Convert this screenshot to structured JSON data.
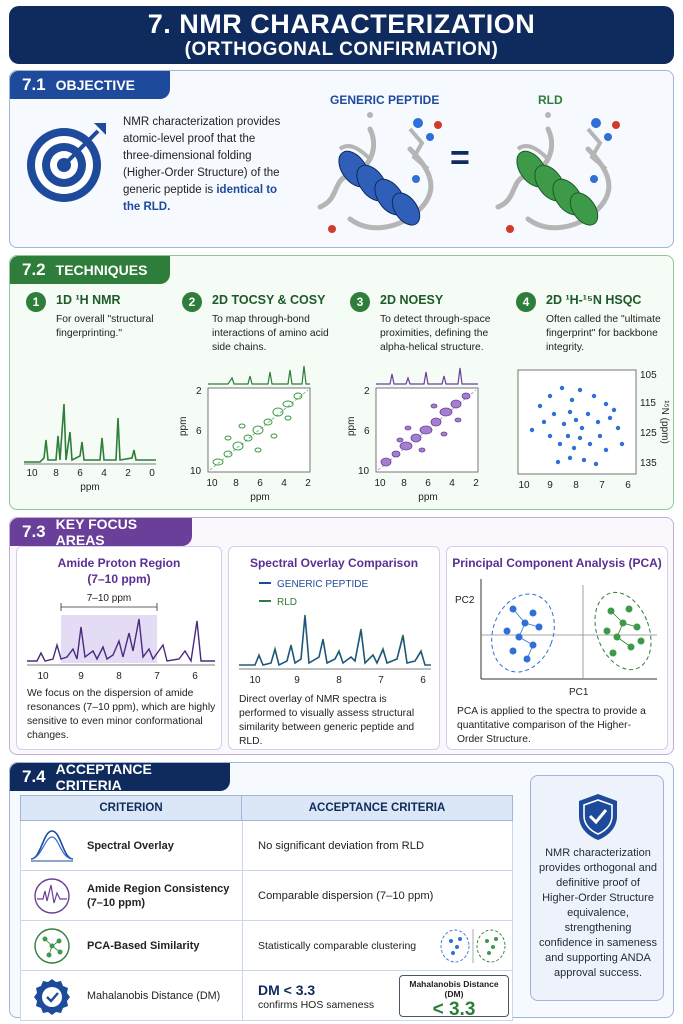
{
  "header": {
    "title": "7. NMR CHARACTERIZATION",
    "subtitle": "(ORTHOGONAL CONFIRMATION)"
  },
  "objective": {
    "number": "7.1",
    "heading": "OBJECTIVE",
    "text": "NMR characterization provides atomic-level proof that the three-dimensional folding (Higher-Order Structure) of the generic peptide is",
    "highlight": "identical to the RLD.",
    "label_left": "GENERIC PEPTIDE",
    "label_right": "RLD",
    "equals": "="
  },
  "techniques": {
    "number": "7.2",
    "heading": "TECHNIQUES",
    "items": [
      {
        "num": "1",
        "title": "1D ¹H NMR",
        "desc": "For overall \"structural fingerprinting.\""
      },
      {
        "num": "2",
        "title": "2D TOCSY & COSY",
        "desc": "To map through-bond interactions of amino acid side chains."
      },
      {
        "num": "3",
        "title": "2D NOESY",
        "desc": "To detect through-space proximities, defining the alpha-helical structure."
      },
      {
        "num": "4",
        "title": "2D ¹H-¹⁵N HSQC",
        "desc": "Often called the \"ultimate fingerprint\" for backbone integrity."
      }
    ],
    "plot1_ticks": [
      "10",
      "8",
      "6",
      "4",
      "2",
      "0"
    ],
    "ppm": "ppm",
    "plot2_xticks": [
      "10",
      "8",
      "6",
      "4",
      "2"
    ],
    "plot2_yticks": [
      "2",
      "6",
      "10"
    ],
    "plot4_xticks": [
      "10",
      "9",
      "8",
      "7",
      "6"
    ],
    "plot4_yticks": [
      "105",
      "115",
      "125",
      "135"
    ],
    "plot4_ylabel": "¹⁵N (ppm)"
  },
  "focus": {
    "number": "7.3",
    "heading": "KEY FOCUS AREAS",
    "cards": [
      {
        "title": "Amide Proton Region",
        "subtitle": "(7–10 ppm)",
        "range_label": "7–10 ppm",
        "desc": "We focus on the dispersion of amide resonances (7–10 ppm), which are highly sensitive to even minor conformational changes."
      },
      {
        "title": "Spectral Overlay Comparison",
        "desc": "Direct overlay of NMR spectra is performed to visually assess structural similarity between generic peptide and RLD."
      },
      {
        "title": "Principal Component Analysis (PCA)",
        "desc": "PCA is applied to the spectra to provide a quantitative comparison of the Higher-Order Structure."
      }
    ],
    "amide_ticks": [
      "10",
      "9",
      "8",
      "7",
      "6"
    ],
    "overlay_legend": [
      "GENERIC PEPTIDE",
      "RLD"
    ],
    "overlay_ticks": [
      "10",
      "9",
      "8",
      "7",
      "6"
    ],
    "pca_x": "PC1",
    "pca_y": "PC2"
  },
  "acceptance": {
    "number": "7.4",
    "heading": "ACCEPTANCE CRITERIA",
    "col1": "CRITERION",
    "col2": "ACCEPTANCE CRITERIA",
    "rows": [
      {
        "criterion": "Spectral Overlay",
        "acceptance": "No significant deviation from RLD"
      },
      {
        "criterion": "Amide Region Consistency (7–10 ppm)",
        "acceptance": "Comparable dispersion (7–10 ppm)"
      },
      {
        "criterion": "PCA-Based Similarity",
        "acceptance": "Statistically comparable clustering"
      },
      {
        "criterion": "Mahalanobis Distance (DM)",
        "acceptance_big": "DM < 3.3",
        "acceptance_small": "confirms HOS sameness"
      }
    ],
    "dm_box_label": "Mahalanobis Distance (DM)",
    "dm_box_value": "< 3.3",
    "side_text": "NMR characterization provides orthogonal and definitive proof of Higher-Order Structure equivalence, strengthening confidence in sameness and supporting ANDA approval success."
  }
}
